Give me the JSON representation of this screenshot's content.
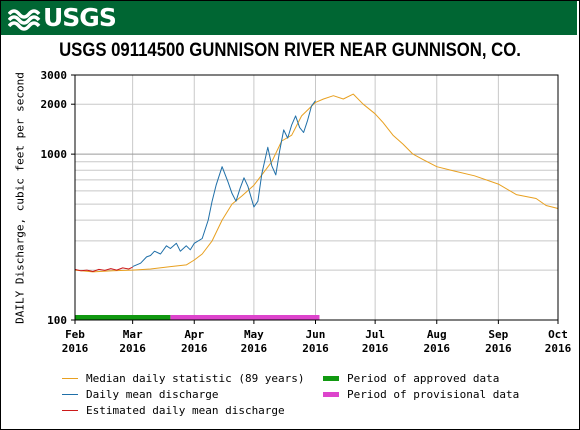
{
  "header": {
    "logo_text": "USGS",
    "logo_icon": "usgs-wave-icon",
    "brand_color": "#006633"
  },
  "chart_data": {
    "type": "line",
    "title": "USGS 09114500 GUNNISON RIVER NEAR GUNNISON, CO.",
    "ylabel": "DAILY Discharge, cubic feet per second",
    "xlabel": "",
    "yscale": "log",
    "ylim": [
      100,
      3000
    ],
    "y_ticks": [
      100,
      1000,
      2000,
      3000
    ],
    "y_tick_labels": [
      "100",
      "1000",
      "2000",
      "3000"
    ],
    "x_ticks": [
      {
        "date": "2016-02-01",
        "month": "Feb",
        "year": "2016"
      },
      {
        "date": "2016-03-01",
        "month": "Mar",
        "year": "2016"
      },
      {
        "date": "2016-04-01",
        "month": "Apr",
        "year": "2016"
      },
      {
        "date": "2016-05-01",
        "month": "May",
        "year": "2016"
      },
      {
        "date": "2016-06-01",
        "month": "Jun",
        "year": "2016"
      },
      {
        "date": "2016-07-01",
        "month": "Jul",
        "year": "2016"
      },
      {
        "date": "2016-08-01",
        "month": "Aug",
        "year": "2016"
      },
      {
        "date": "2016-09-01",
        "month": "Sep",
        "year": "2016"
      },
      {
        "date": "2016-10-01",
        "month": "Oct",
        "year": "2016"
      }
    ],
    "xlim": [
      "2016-02-01",
      "2016-10-01"
    ],
    "grid": true,
    "series": [
      {
        "name": "Median daily statistic (89 years)",
        "color": "#e8a020",
        "x": [
          "2016-02-01",
          "2016-02-10",
          "2016-02-20",
          "2016-03-01",
          "2016-03-10",
          "2016-03-20",
          "2016-03-28",
          "2016-04-01",
          "2016-04-05",
          "2016-04-10",
          "2016-04-15",
          "2016-04-20",
          "2016-04-25",
          "2016-05-01",
          "2016-05-05",
          "2016-05-10",
          "2016-05-15",
          "2016-05-20",
          "2016-05-25",
          "2016-06-01",
          "2016-06-05",
          "2016-06-10",
          "2016-06-15",
          "2016-06-20",
          "2016-06-25",
          "2016-07-01",
          "2016-07-05",
          "2016-07-10",
          "2016-07-15",
          "2016-07-20",
          "2016-07-25",
          "2016-08-01",
          "2016-08-10",
          "2016-08-20",
          "2016-09-01",
          "2016-09-10",
          "2016-09-20",
          "2016-09-25",
          "2016-10-01"
        ],
        "y": [
          200,
          195,
          198,
          200,
          203,
          210,
          215,
          230,
          250,
          300,
          400,
          500,
          560,
          650,
          750,
          900,
          1200,
          1300,
          1700,
          2050,
          2150,
          2250,
          2150,
          2300,
          2000,
          1750,
          1550,
          1300,
          1150,
          1000,
          930,
          840,
          790,
          740,
          660,
          570,
          540,
          490,
          470
        ]
      },
      {
        "name": "Daily mean discharge",
        "color": "#1f6fa8",
        "x": [
          "2016-03-01",
          "2016-03-05",
          "2016-03-08",
          "2016-03-10",
          "2016-03-12",
          "2016-03-15",
          "2016-03-18",
          "2016-03-20",
          "2016-03-23",
          "2016-03-25",
          "2016-03-28",
          "2016-03-30",
          "2016-04-01",
          "2016-04-05",
          "2016-04-08",
          "2016-04-10",
          "2016-04-12",
          "2016-04-15",
          "2016-04-18",
          "2016-04-20",
          "2016-04-22",
          "2016-04-24",
          "2016-04-26",
          "2016-04-28",
          "2016-05-01",
          "2016-05-03",
          "2016-05-05",
          "2016-05-08",
          "2016-05-10",
          "2016-05-12",
          "2016-05-14",
          "2016-05-16",
          "2016-05-18",
          "2016-05-20",
          "2016-05-22",
          "2016-05-24",
          "2016-05-26",
          "2016-05-28",
          "2016-05-30",
          "2016-06-01"
        ],
        "y": [
          210,
          220,
          240,
          245,
          260,
          250,
          280,
          270,
          290,
          260,
          280,
          265,
          290,
          310,
          400,
          520,
          650,
          840,
          680,
          580,
          520,
          620,
          720,
          640,
          480,
          520,
          760,
          1100,
          850,
          750,
          1050,
          1400,
          1250,
          1500,
          1700,
          1450,
          1350,
          1600,
          1950,
          2100
        ]
      },
      {
        "name": "Estimated daily mean discharge",
        "color": "#cc1a1a",
        "x": [
          "2016-02-01",
          "2016-02-04",
          "2016-02-07",
          "2016-02-10",
          "2016-02-13",
          "2016-02-16",
          "2016-02-19",
          "2016-02-22",
          "2016-02-25",
          "2016-02-28",
          "2016-03-01"
        ],
        "y": [
          202,
          198,
          200,
          196,
          202,
          199,
          204,
          200,
          206,
          203,
          208
        ]
      }
    ],
    "periods": [
      {
        "name": "Period of approved data",
        "color": "#119911",
        "start": "2016-02-01",
        "end": "2016-03-20"
      },
      {
        "name": "Period of provisional data",
        "color": "#dd44cc",
        "start": "2016-03-20",
        "end": "2016-06-03"
      }
    ],
    "legend_position": "bottom"
  }
}
